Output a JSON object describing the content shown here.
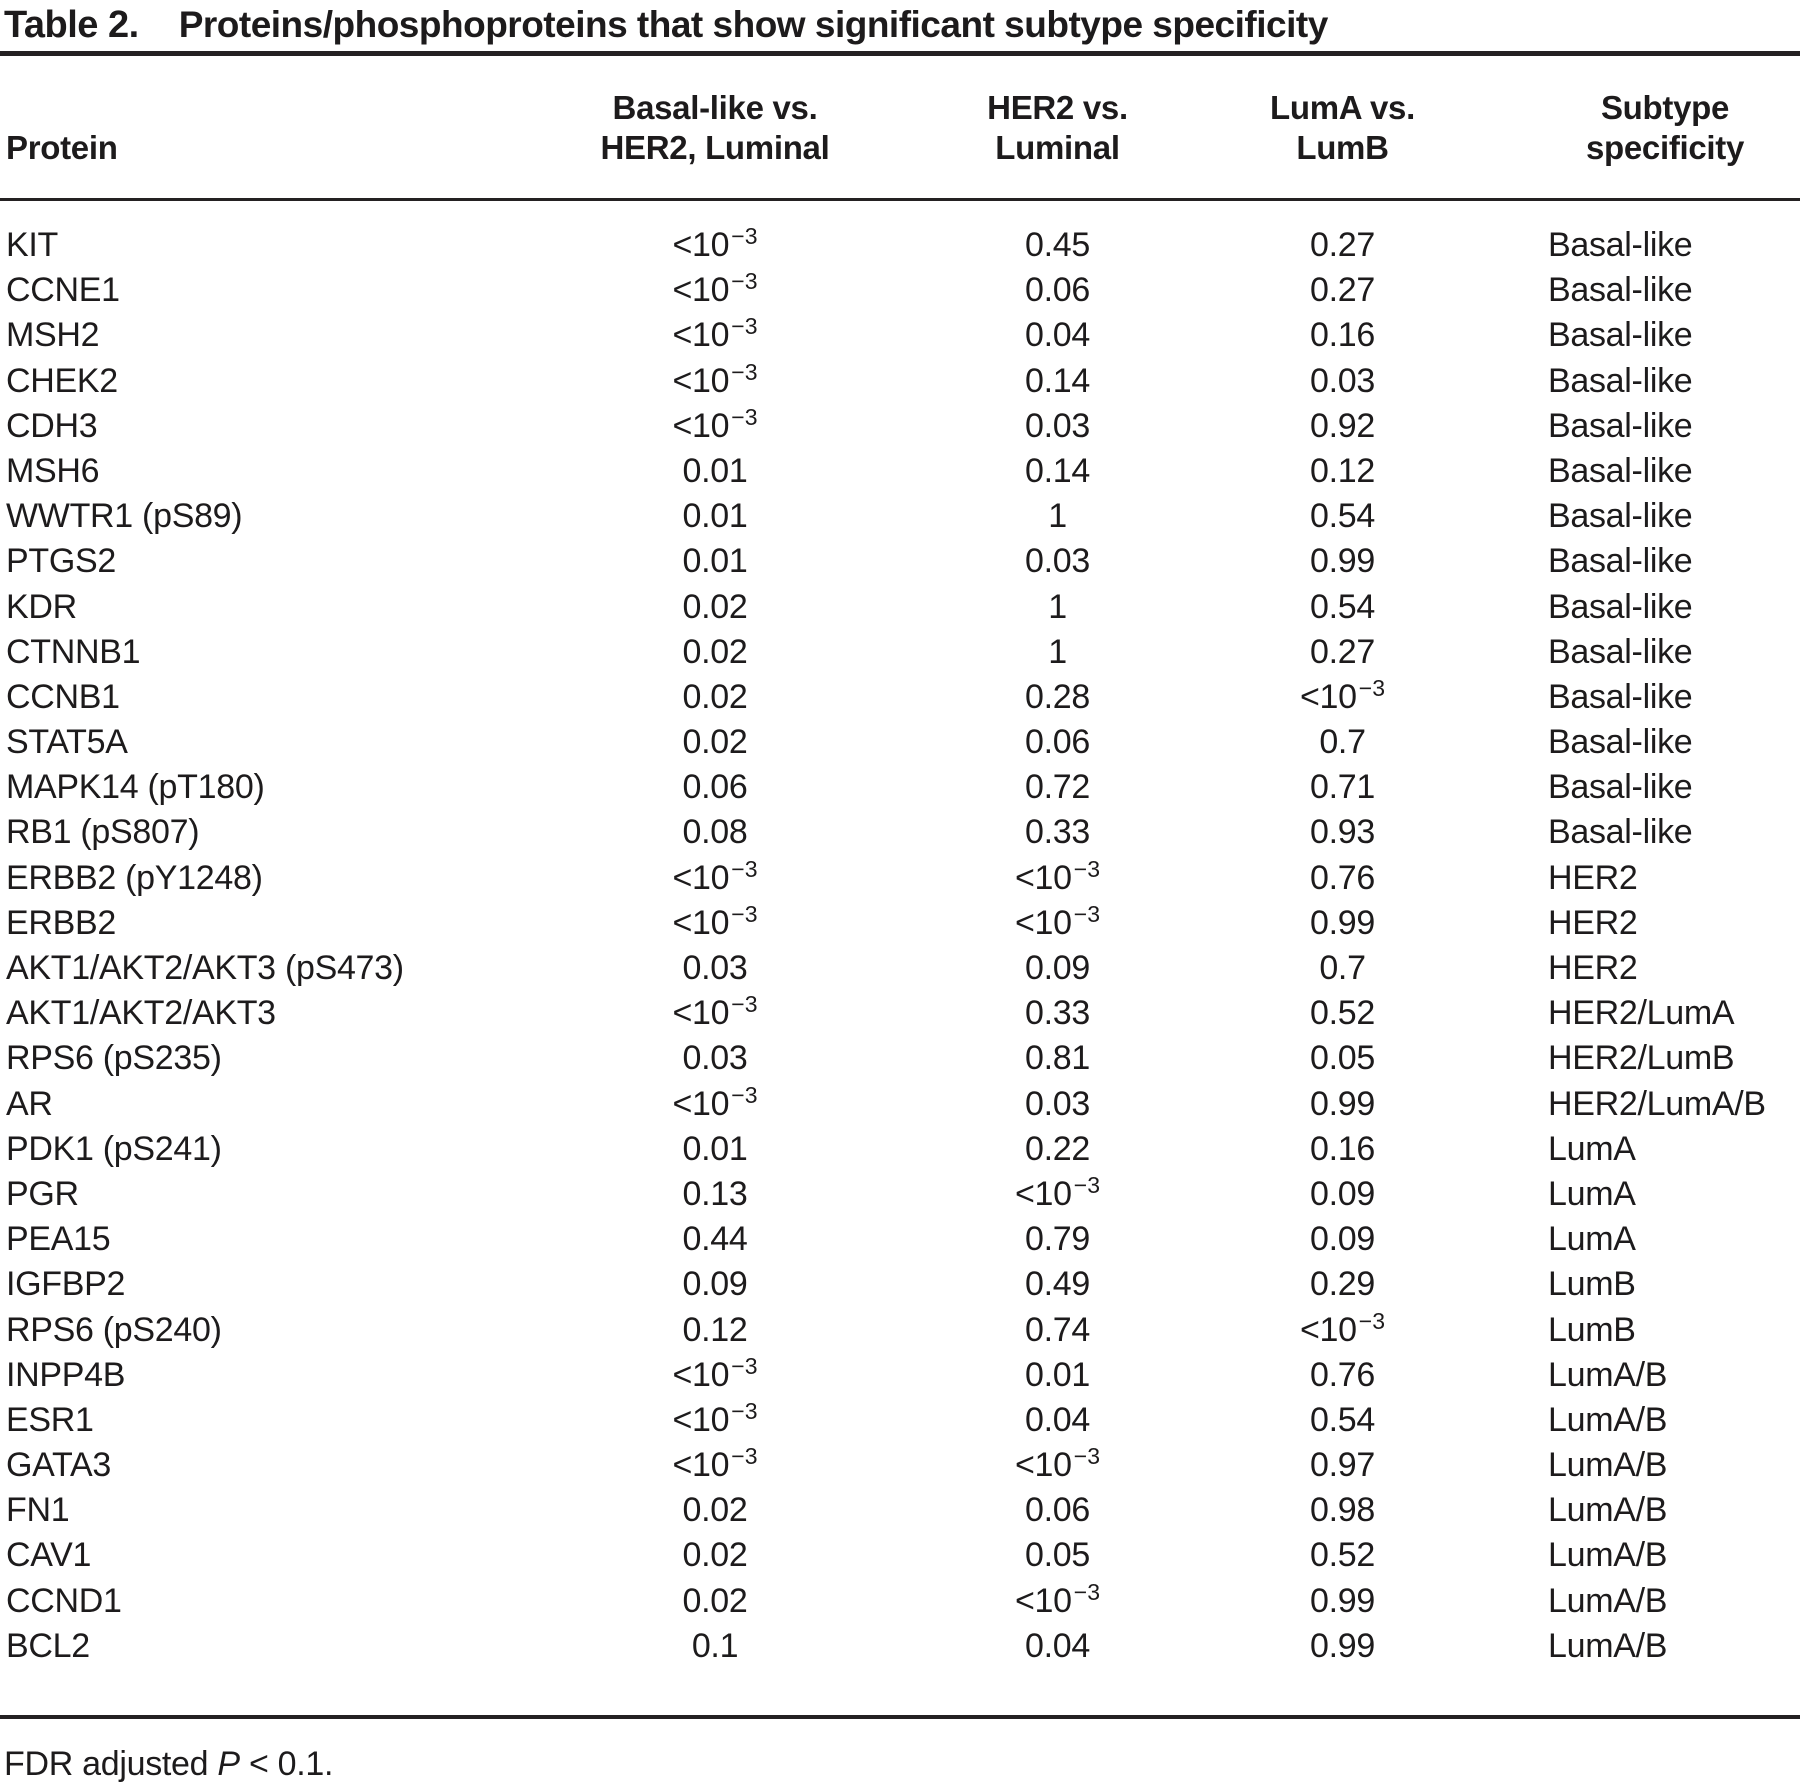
{
  "title": {
    "label": "Table 2.",
    "text": "Proteins/phosphoproteins that show significant subtype specificity"
  },
  "table": {
    "headers": {
      "protein": "Protein",
      "basal_vs": "Basal-like vs.\nHER2, Luminal",
      "her2_vs": "HER2 vs.\nLuminal",
      "luma_vs": "LumA vs.\nLumB",
      "subtype": "Subtype\nspecificity"
    },
    "rows": [
      [
        "KIT",
        "<10^−3",
        "0.45",
        "0.27",
        "Basal-like"
      ],
      [
        "CCNE1",
        "<10^−3",
        "0.06",
        "0.27",
        "Basal-like"
      ],
      [
        "MSH2",
        "<10^−3",
        "0.04",
        "0.16",
        "Basal-like"
      ],
      [
        "CHEK2",
        "<10^−3",
        "0.14",
        "0.03",
        "Basal-like"
      ],
      [
        "CDH3",
        "<10^−3",
        "0.03",
        "0.92",
        "Basal-like"
      ],
      [
        "MSH6",
        "0.01",
        "0.14",
        "0.12",
        "Basal-like"
      ],
      [
        "WWTR1 (pS89)",
        "0.01",
        "1",
        "0.54",
        "Basal-like"
      ],
      [
        "PTGS2",
        "0.01",
        "0.03",
        "0.99",
        "Basal-like"
      ],
      [
        "KDR",
        "0.02",
        "1",
        "0.54",
        "Basal-like"
      ],
      [
        "CTNNB1",
        "0.02",
        "1",
        "0.27",
        "Basal-like"
      ],
      [
        "CCNB1",
        "0.02",
        "0.28",
        "<10^−3",
        "Basal-like"
      ],
      [
        "STAT5A",
        "0.02",
        "0.06",
        "0.7",
        "Basal-like"
      ],
      [
        "MAPK14 (pT180)",
        "0.06",
        "0.72",
        "0.71",
        "Basal-like"
      ],
      [
        "RB1 (pS807)",
        "0.08",
        "0.33",
        "0.93",
        "Basal-like"
      ],
      [
        "ERBB2 (pY1248)",
        "<10^−3",
        "<10^−3",
        "0.76",
        "HER2"
      ],
      [
        "ERBB2",
        "<10^−3",
        "<10^−3",
        "0.99",
        "HER2"
      ],
      [
        "AKT1/AKT2/AKT3 (pS473)",
        "0.03",
        "0.09",
        "0.7",
        "HER2"
      ],
      [
        "AKT1/AKT2/AKT3",
        "<10^−3",
        "0.33",
        "0.52",
        "HER2/LumA"
      ],
      [
        "RPS6 (pS235)",
        "0.03",
        "0.81",
        "0.05",
        "HER2/LumB"
      ],
      [
        "AR",
        "<10^−3",
        "0.03",
        "0.99",
        "HER2/LumA/B"
      ],
      [
        "PDK1 (pS241)",
        "0.01",
        "0.22",
        "0.16",
        "LumA"
      ],
      [
        "PGR",
        "0.13",
        "<10^−3",
        "0.09",
        "LumA"
      ],
      [
        "PEA15",
        "0.44",
        "0.79",
        "0.09",
        "LumA"
      ],
      [
        "IGFBP2",
        "0.09",
        "0.49",
        "0.29",
        "LumB"
      ],
      [
        "RPS6 (pS240)",
        "0.12",
        "0.74",
        "<10^−3",
        "LumB"
      ],
      [
        "INPP4B",
        "<10^−3",
        "0.01",
        "0.76",
        "LumA/B"
      ],
      [
        "ESR1",
        "<10^−3",
        "0.04",
        "0.54",
        "LumA/B"
      ],
      [
        "GATA3",
        "<10^−3",
        "<10^−3",
        "0.97",
        "LumA/B"
      ],
      [
        "FN1",
        "0.02",
        "0.06",
        "0.98",
        "LumA/B"
      ],
      [
        "CAV1",
        "0.02",
        "0.05",
        "0.52",
        "LumA/B"
      ],
      [
        "CCND1",
        "0.02",
        "<10^−3",
        "0.99",
        "LumA/B"
      ],
      [
        "BCL2",
        "0.1",
        "0.04",
        "0.99",
        "LumA/B"
      ]
    ]
  },
  "footnote": {
    "prefix": "FDR adjusted ",
    "symbol": "P",
    "suffix": " < 0.1."
  },
  "colors": {
    "text": "#1d1b1c",
    "rule": "#242122",
    "background": "#ffffff"
  }
}
